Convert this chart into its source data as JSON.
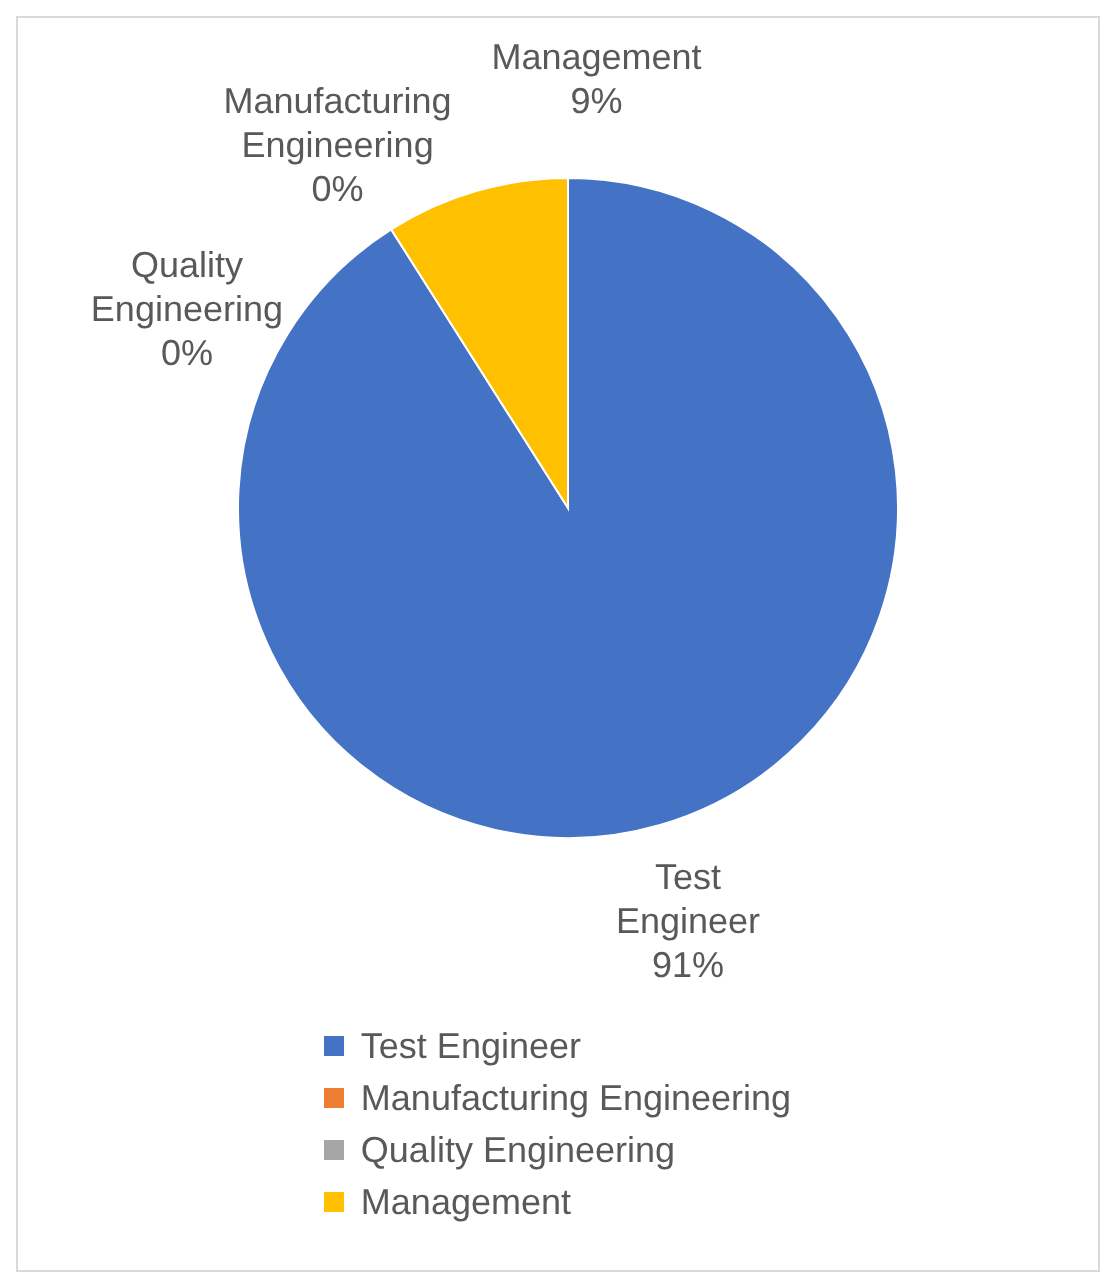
{
  "chart_data": {
    "type": "pie",
    "categories": [
      "Test Engineer",
      "Manufacturing Engineering",
      "Quality Engineering",
      "Management"
    ],
    "values": [
      91,
      0,
      0,
      9
    ],
    "colors": [
      "#4472c4",
      "#ed7d31",
      "#a5a5a5",
      "#ffc000"
    ],
    "value_labels": [
      "91%",
      "0%",
      "0%",
      "9%"
    ],
    "legend": "bottom"
  }
}
